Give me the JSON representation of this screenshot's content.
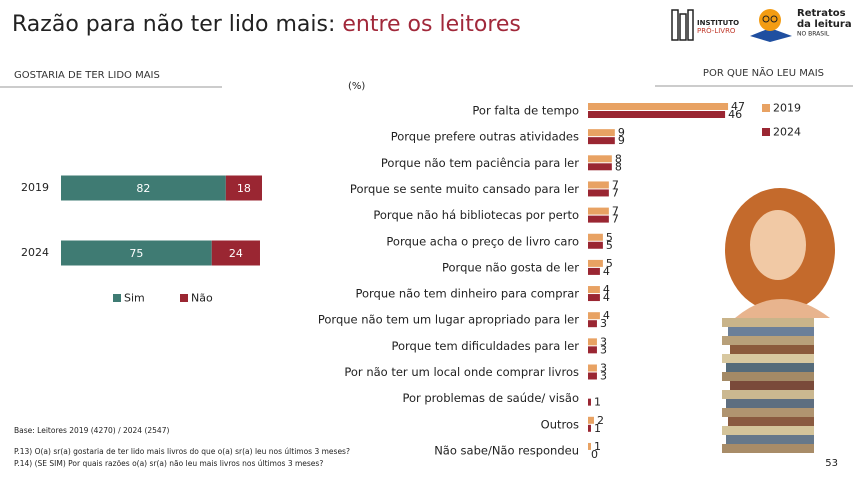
{
  "header": {
    "title": "Razão para não ter lido mais:",
    "subtitle": "entre os leitores",
    "logo_1": "INSTITUTO",
    "logo_2": "PRÓ-LIVRO",
    "logo_3": "Retratos",
    "logo_4": "da leitura",
    "logo_5": "NO BRASIL"
  },
  "chart_data": [
    {
      "type": "bar",
      "orientation": "horizontal",
      "stacked": true,
      "title": "GOSTARIA DE TER LIDO MAIS",
      "categories": [
        "2019",
        "2024"
      ],
      "series": [
        {
          "name": "Sim",
          "color": "#3f7b73",
          "values": [
            82,
            75
          ]
        },
        {
          "name": "Não",
          "color": "#9a2632",
          "values": [
            18,
            24
          ]
        }
      ],
      "xlim": [
        0,
        100
      ]
    },
    {
      "type": "bar",
      "orientation": "horizontal",
      "stacked": false,
      "title": "POR QUE NÃO LEU MAIS",
      "unit_label": "(%)",
      "categories": [
        "Por falta de tempo",
        "Porque prefere outras atividades",
        "Porque não tem paciência para ler",
        "Porque se sente muito cansado para ler",
        "Porque não há bibliotecas por perto",
        "Porque acha o preço de livro caro",
        "Porque não gosta de ler",
        "Porque não tem dinheiro para comprar",
        "Porque não tem um lugar apropriado para ler",
        "Porque tem dificuldades para ler",
        "Por não ter um local onde comprar livros",
        "Por problemas de saúde/ visão",
        "Outros",
        "Não sabe/Não respondeu"
      ],
      "series": [
        {
          "name": "2019",
          "color": "#e8a263",
          "values": [
            47,
            9,
            8,
            7,
            7,
            5,
            5,
            4,
            4,
            3,
            3,
            null,
            2,
            1
          ]
        },
        {
          "name": "2024",
          "color": "#9a2632",
          "values": [
            46,
            9,
            8,
            7,
            7,
            5,
            4,
            4,
            3,
            3,
            3,
            1,
            1,
            0
          ]
        }
      ],
      "xlim": [
        0,
        50
      ]
    }
  ],
  "notes": {
    "base": "Base: Leitores  2019 (4270) / 2024 (2547)",
    "q1": "P.13) O(a) sr(a) gostaria de ter lido mais livros do que o(a) sr(a) leu nos últimos 3 meses?",
    "q2": "P.14) (SE SIM) Por quais razões o(a) sr(a) não leu mais livros nos últimos 3 meses?"
  },
  "page_number": "53"
}
